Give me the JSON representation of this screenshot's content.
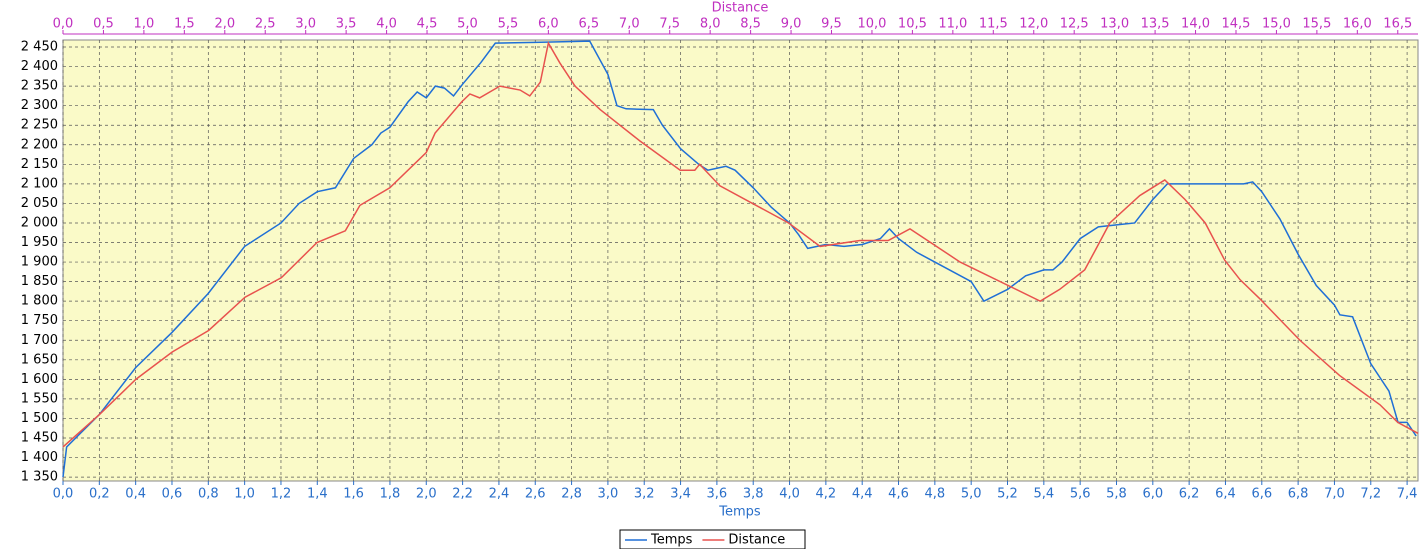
{
  "chart_data": {
    "type": "line",
    "xlabel": "Temps",
    "x2label": "Distance",
    "xlim": [
      0,
      7.46
    ],
    "x2lim": [
      0,
      16.75
    ],
    "ylim": [
      1340,
      2468
    ],
    "grid": true,
    "legend": "bottom",
    "xticks": [
      {
        "value": 0,
        "label": "0,0"
      },
      {
        "value": 0.2,
        "label": "0,2"
      },
      {
        "value": 0.4,
        "label": "0,4"
      },
      {
        "value": 0.6,
        "label": "0,6"
      },
      {
        "value": 0.8,
        "label": "0,8"
      },
      {
        "value": 1,
        "label": "1,0"
      },
      {
        "value": 1.2,
        "label": "1,2"
      },
      {
        "value": 1.4,
        "label": "1,4"
      },
      {
        "value": 1.6,
        "label": "1,6"
      },
      {
        "value": 1.8,
        "label": "1,8"
      },
      {
        "value": 2,
        "label": "2,0"
      },
      {
        "value": 2.2,
        "label": "2,2"
      },
      {
        "value": 2.4,
        "label": "2,4"
      },
      {
        "value": 2.6,
        "label": "2,6"
      },
      {
        "value": 2.8,
        "label": "2,8"
      },
      {
        "value": 3,
        "label": "3,0"
      },
      {
        "value": 3.2,
        "label": "3,2"
      },
      {
        "value": 3.4,
        "label": "3,4"
      },
      {
        "value": 3.6,
        "label": "3,6"
      },
      {
        "value": 3.8,
        "label": "3,8"
      },
      {
        "value": 4,
        "label": "4,0"
      },
      {
        "value": 4.2,
        "label": "4,2"
      },
      {
        "value": 4.4,
        "label": "4,4"
      },
      {
        "value": 4.6,
        "label": "4,6"
      },
      {
        "value": 4.8,
        "label": "4,8"
      },
      {
        "value": 5,
        "label": "5,0"
      },
      {
        "value": 5.2,
        "label": "5,2"
      },
      {
        "value": 5.4,
        "label": "5,4"
      },
      {
        "value": 5.6,
        "label": "5,6"
      },
      {
        "value": 5.8,
        "label": "5,8"
      },
      {
        "value": 6,
        "label": "6,0"
      },
      {
        "value": 6.2,
        "label": "6,2"
      },
      {
        "value": 6.4,
        "label": "6,4"
      },
      {
        "value": 6.6,
        "label": "6,6"
      },
      {
        "value": 6.8,
        "label": "6,8"
      },
      {
        "value": 7,
        "label": "7,0"
      },
      {
        "value": 7.2,
        "label": "7,2"
      },
      {
        "value": 7.4,
        "label": "7,4"
      }
    ],
    "x2ticks": [
      {
        "value": 0,
        "label": "0,0"
      },
      {
        "value": 0.5,
        "label": "0,5"
      },
      {
        "value": 1,
        "label": "1,0"
      },
      {
        "value": 1.5,
        "label": "1,5"
      },
      {
        "value": 2,
        "label": "2,0"
      },
      {
        "value": 2.5,
        "label": "2,5"
      },
      {
        "value": 3,
        "label": "3,0"
      },
      {
        "value": 3.5,
        "label": "3,5"
      },
      {
        "value": 4,
        "label": "4,0"
      },
      {
        "value": 4.5,
        "label": "4,5"
      },
      {
        "value": 5,
        "label": "5,0"
      },
      {
        "value": 5.5,
        "label": "5,5"
      },
      {
        "value": 6,
        "label": "6,0"
      },
      {
        "value": 6.5,
        "label": "6,5"
      },
      {
        "value": 7,
        "label": "7,0"
      },
      {
        "value": 7.5,
        "label": "7,5"
      },
      {
        "value": 8,
        "label": "8,0"
      },
      {
        "value": 8.5,
        "label": "8,5"
      },
      {
        "value": 9,
        "label": "9,0"
      },
      {
        "value": 9.5,
        "label": "9,5"
      },
      {
        "value": 10,
        "label": "10,0"
      },
      {
        "value": 10.5,
        "label": "10,5"
      },
      {
        "value": 11,
        "label": "11,0"
      },
      {
        "value": 11.5,
        "label": "11,5"
      },
      {
        "value": 12,
        "label": "12,0"
      },
      {
        "value": 12.5,
        "label": "12,5"
      },
      {
        "value": 13,
        "label": "13,0"
      },
      {
        "value": 13.5,
        "label": "13,5"
      },
      {
        "value": 14,
        "label": "14,0"
      },
      {
        "value": 14.5,
        "label": "14,5"
      },
      {
        "value": 15,
        "label": "15,0"
      },
      {
        "value": 15.5,
        "label": "15,5"
      },
      {
        "value": 16,
        "label": "16,0"
      },
      {
        "value": 16.5,
        "label": "16,5"
      }
    ],
    "yticks": [
      {
        "value": 1350,
        "label": "1 350"
      },
      {
        "value": 1400,
        "label": "1 400"
      },
      {
        "value": 1450,
        "label": "1 450"
      },
      {
        "value": 1500,
        "label": "1 500"
      },
      {
        "value": 1550,
        "label": "1 550"
      },
      {
        "value": 1600,
        "label": "1 600"
      },
      {
        "value": 1650,
        "label": "1 650"
      },
      {
        "value": 1700,
        "label": "1 700"
      },
      {
        "value": 1750,
        "label": "1 750"
      },
      {
        "value": 1800,
        "label": "1 800"
      },
      {
        "value": 1850,
        "label": "1 850"
      },
      {
        "value": 1900,
        "label": "1 900"
      },
      {
        "value": 1950,
        "label": "1 950"
      },
      {
        "value": 2000,
        "label": "2 000"
      },
      {
        "value": 2050,
        "label": "2 050"
      },
      {
        "value": 2100,
        "label": "2 100"
      },
      {
        "value": 2150,
        "label": "2 150"
      },
      {
        "value": 2200,
        "label": "2 200"
      },
      {
        "value": 2250,
        "label": "2 250"
      },
      {
        "value": 2300,
        "label": "2 300"
      },
      {
        "value": 2350,
        "label": "2 350"
      },
      {
        "value": 2400,
        "label": "2 400"
      },
      {
        "value": 2450,
        "label": "2 450"
      }
    ],
    "series": [
      {
        "name": "Temps",
        "color": "#1f6fd6",
        "axis": "x",
        "x": [
          0,
          0.02,
          0.2,
          0.4,
          0.6,
          0.8,
          1.0,
          1.2,
          1.3,
          1.4,
          1.5,
          1.6,
          1.7,
          1.75,
          1.8,
          1.9,
          1.95,
          2.0,
          2.05,
          2.1,
          2.15,
          2.2,
          2.3,
          2.38,
          2.6,
          2.9,
          3.0,
          3.05,
          3.1,
          3.25,
          3.3,
          3.4,
          3.5,
          3.55,
          3.6,
          3.65,
          3.7,
          3.8,
          3.9,
          4.0,
          4.05,
          4.1,
          4.2,
          4.3,
          4.4,
          4.5,
          4.55,
          4.6,
          4.7,
          4.8,
          5.0,
          5.07,
          5.2,
          5.3,
          5.4,
          5.45,
          5.5,
          5.6,
          5.7,
          5.8,
          5.9,
          6.0,
          6.08,
          6.5,
          6.55,
          6.6,
          6.7,
          6.8,
          6.9,
          7.0,
          7.03,
          7.1,
          7.2,
          7.3,
          7.35,
          7.4,
          7.45
        ],
        "values": [
          1350,
          1427,
          1510,
          1630,
          1720,
          1820,
          1940,
          2000,
          2050,
          2080,
          2090,
          2165,
          2200,
          2230,
          2245,
          2310,
          2335,
          2320,
          2350,
          2345,
          2325,
          2355,
          2410,
          2460,
          2462,
          2465,
          2380,
          2300,
          2292,
          2290,
          2250,
          2190,
          2150,
          2135,
          2140,
          2145,
          2135,
          2090,
          2040,
          2000,
          1970,
          1935,
          1945,
          1940,
          1945,
          1960,
          1985,
          1960,
          1925,
          1900,
          1850,
          1800,
          1830,
          1865,
          1880,
          1880,
          1900,
          1960,
          1990,
          1995,
          2000,
          2060,
          2100,
          2100,
          2105,
          2080,
          2010,
          1920,
          1840,
          1790,
          1765,
          1760,
          1640,
          1570,
          1490,
          1490,
          1455
        ]
      },
      {
        "name": "Distance",
        "color": "#e8524e",
        "axis": "x2",
        "x": [
          0,
          0.45,
          0.9,
          1.35,
          1.8,
          2.25,
          2.7,
          3.14,
          3.49,
          3.67,
          4.04,
          4.49,
          4.6,
          4.93,
          5.03,
          5.15,
          5.4,
          5.65,
          5.77,
          5.9,
          6.0,
          6.14,
          6.33,
          6.64,
          7.13,
          7.63,
          7.81,
          7.87,
          8.12,
          8.97,
          9.36,
          9.85,
          10.2,
          10.47,
          11.09,
          12.08,
          12.32,
          12.63,
          12.76,
          12.94,
          13.31,
          13.62,
          13.87,
          14.12,
          14.36,
          14.55,
          14.8,
          15.29,
          15.78,
          16.28,
          16.5,
          16.75
        ],
        "values": [
          1427,
          1510,
          1600,
          1670,
          1725,
          1810,
          1860,
          1950,
          1980,
          2045,
          2090,
          2180,
          2230,
          2310,
          2330,
          2320,
          2350,
          2340,
          2325,
          2360,
          2460,
          2410,
          2350,
          2290,
          2210,
          2135,
          2135,
          2150,
          2095,
          2000,
          1940,
          1955,
          1955,
          1985,
          1900,
          1800,
          1830,
          1880,
          1930,
          2000,
          2070,
          2110,
          2060,
          2000,
          1905,
          1855,
          1805,
          1700,
          1610,
          1535,
          1490,
          1462
        ]
      }
    ]
  }
}
